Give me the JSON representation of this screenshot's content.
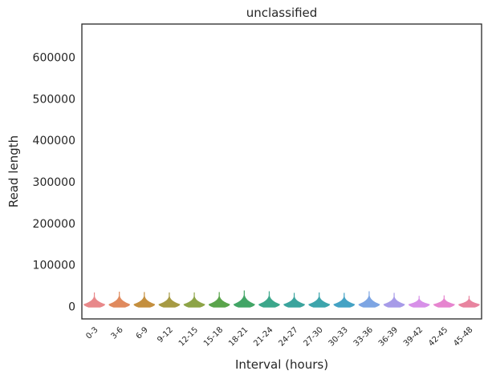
{
  "chart_data": {
    "type": "violin",
    "title": "unclassified",
    "xlabel": "Interval (hours)",
    "ylabel": "Read length",
    "categories": [
      "0-3",
      "3-6",
      "6-9",
      "9-12",
      "12-15",
      "15-18",
      "18-21",
      "21-24",
      "24-27",
      "27-30",
      "30-33",
      "33-36",
      "36-39",
      "39-42",
      "42-45",
      "45-48"
    ],
    "colors": [
      "#e8888a",
      "#e08a5e",
      "#c48f3e",
      "#a69a43",
      "#8da447",
      "#5aa44b",
      "#42a566",
      "#3ca78b",
      "#3ba49d",
      "#3da5ac",
      "#44a2c4",
      "#7da5e3",
      "#a79be8",
      "#d790e8",
      "#e685cf",
      "#e8849f"
    ],
    "series": [
      {
        "category": "0-3",
        "max": 33000,
        "median": 5000
      },
      {
        "category": "3-6",
        "max": 35000,
        "median": 5000
      },
      {
        "category": "6-9",
        "max": 34000,
        "median": 5000
      },
      {
        "category": "9-12",
        "max": 33000,
        "median": 5000
      },
      {
        "category": "12-15",
        "max": 33000,
        "median": 5000
      },
      {
        "category": "15-18",
        "max": 34000,
        "median": 5000
      },
      {
        "category": "18-21",
        "max": 38000,
        "median": 5000
      },
      {
        "category": "21-24",
        "max": 36000,
        "median": 5000
      },
      {
        "category": "24-27",
        "max": 32000,
        "median": 5000
      },
      {
        "category": "27-30",
        "max": 33000,
        "median": 5000
      },
      {
        "category": "30-33",
        "max": 32000,
        "median": 5000
      },
      {
        "category": "33-36",
        "max": 36000,
        "median": 5000
      },
      {
        "category": "36-39",
        "max": 32000,
        "median": 5000
      },
      {
        "category": "39-42",
        "max": 25000,
        "median": 5000
      },
      {
        "category": "42-45",
        "max": 26000,
        "median": 5000
      },
      {
        "category": "45-48",
        "max": 25000,
        "median": 5000
      }
    ],
    "yticks": [
      0,
      100000,
      200000,
      300000,
      400000,
      500000,
      600000
    ],
    "ylim": [
      -30000,
      680000
    ],
    "grid": false,
    "legend": "none"
  }
}
